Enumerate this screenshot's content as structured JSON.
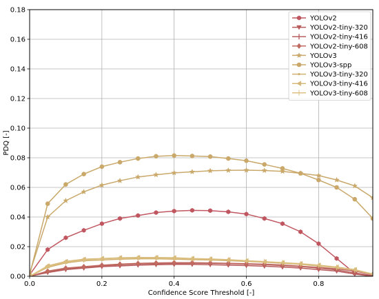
{
  "chart_data": {
    "type": "line",
    "title": "",
    "xlabel": "Confidence Score Threshold [-]",
    "ylabel": "PDQ [-]",
    "xlim": [
      0.0,
      0.95
    ],
    "ylim": [
      0.0,
      0.18
    ],
    "xticks": [
      "0.0",
      "0.2",
      "0.4",
      "0.6",
      "0.8"
    ],
    "yticks": [
      "0.00",
      "0.02",
      "0.04",
      "0.06",
      "0.08",
      "0.10",
      "0.12",
      "0.14",
      "0.16",
      "0.18"
    ],
    "grid": true,
    "legend_position": "top-right",
    "x": [
      0.0,
      0.05,
      0.1,
      0.15,
      0.2,
      0.25,
      0.3,
      0.35,
      0.4,
      0.45,
      0.5,
      0.55,
      0.6,
      0.65,
      0.7,
      0.75,
      0.8,
      0.85,
      0.9,
      0.95
    ],
    "series": [
      {
        "name": "YOLOv2",
        "color": "#c0565f",
        "marker": "hexagon",
        "values": [
          0.001,
          0.018,
          0.026,
          0.031,
          0.0355,
          0.039,
          0.041,
          0.043,
          0.044,
          0.0445,
          0.0443,
          0.0435,
          0.042,
          0.039,
          0.0355,
          0.03,
          0.022,
          0.012,
          0.002,
          0.0
        ]
      },
      {
        "name": "YOLOv2-tiny-320",
        "color": "#b85a5a",
        "marker": "triangle-down",
        "values": [
          0.0,
          0.0025,
          0.0045,
          0.0055,
          0.0065,
          0.007,
          0.0075,
          0.0078,
          0.008,
          0.008,
          0.0078,
          0.0075,
          0.0072,
          0.0068,
          0.0062,
          0.0055,
          0.0045,
          0.0035,
          0.0015,
          0.0
        ]
      },
      {
        "name": "YOLOv2-tiny-416",
        "color": "#b86060",
        "marker": "plus",
        "values": [
          0.0,
          0.003,
          0.005,
          0.006,
          0.007,
          0.0078,
          0.0083,
          0.0085,
          0.0087,
          0.0088,
          0.0087,
          0.0085,
          0.0082,
          0.0078,
          0.0072,
          0.0065,
          0.0055,
          0.0043,
          0.0022,
          0.0005
        ]
      },
      {
        "name": "YOLOv2-tiny-608",
        "color": "#c06a60",
        "marker": "diamond",
        "values": [
          0.0,
          0.0035,
          0.0055,
          0.0065,
          0.0075,
          0.0082,
          0.0087,
          0.009,
          0.0092,
          0.0092,
          0.009,
          0.0088,
          0.0085,
          0.0082,
          0.0076,
          0.0068,
          0.006,
          0.005,
          0.0035,
          0.0012
        ]
      },
      {
        "name": "YOLOv3",
        "color": "#c9a86a",
        "marker": "star",
        "values": [
          0.002,
          0.04,
          0.051,
          0.057,
          0.0615,
          0.0645,
          0.067,
          0.0685,
          0.0698,
          0.0705,
          0.0712,
          0.0715,
          0.0716,
          0.0714,
          0.0708,
          0.0695,
          0.068,
          0.065,
          0.061,
          0.053
        ]
      },
      {
        "name": "YOLOv3-spp",
        "color": "#c9a86a",
        "marker": "circle",
        "values": [
          0.001,
          0.049,
          0.062,
          0.069,
          0.074,
          0.077,
          0.0795,
          0.081,
          0.0815,
          0.0812,
          0.0808,
          0.0795,
          0.078,
          0.0755,
          0.0728,
          0.0695,
          0.065,
          0.06,
          0.052,
          0.039
        ]
      },
      {
        "name": "YOLOv3-tiny-320",
        "color": "#d0b070",
        "marker": "dot",
        "values": [
          0.0,
          0.006,
          0.009,
          0.0105,
          0.011,
          0.0115,
          0.0118,
          0.0118,
          0.0115,
          0.0112,
          0.011,
          0.0105,
          0.01,
          0.0095,
          0.0088,
          0.008,
          0.007,
          0.0058,
          0.0042,
          0.0015
        ]
      },
      {
        "name": "YOLOv3-tiny-416",
        "color": "#d6b878",
        "marker": "triangle-left",
        "values": [
          0.0,
          0.007,
          0.01,
          0.0115,
          0.012,
          0.0125,
          0.0127,
          0.0127,
          0.0125,
          0.012,
          0.0117,
          0.0112,
          0.0105,
          0.0098,
          0.0092,
          0.0085,
          0.0075,
          0.0062,
          0.0045,
          0.0015
        ]
      },
      {
        "name": "YOLOv3-tiny-608",
        "color": "#dcc080",
        "marker": "thin-plus",
        "values": [
          0.0,
          0.0065,
          0.0095,
          0.011,
          0.0118,
          0.0122,
          0.0124,
          0.0124,
          0.0122,
          0.0118,
          0.0115,
          0.011,
          0.0105,
          0.0099,
          0.0092,
          0.0084,
          0.0074,
          0.006,
          0.0042,
          0.0014
        ]
      }
    ]
  }
}
